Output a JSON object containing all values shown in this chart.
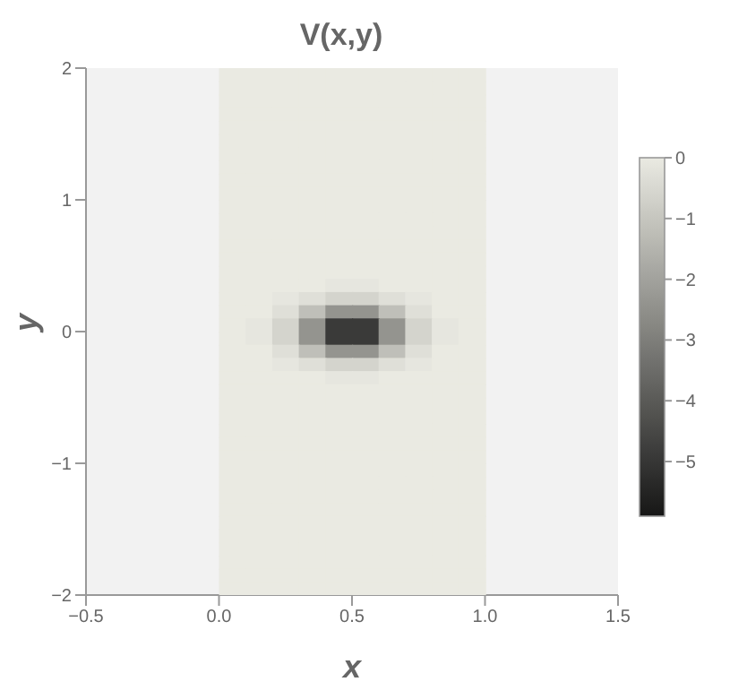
{
  "chart_data": {
    "type": "heatmap",
    "title": "V(x,y)",
    "xlabel": "x",
    "ylabel": "y",
    "x": [
      0.05,
      0.15,
      0.25,
      0.35,
      0.45,
      0.55,
      0.65,
      0.75,
      0.85,
      0.95
    ],
    "xlim": [
      -0.5,
      1.5
    ],
    "xticks": [
      {
        "value": -0.5,
        "label": "−0.5"
      },
      {
        "value": 0,
        "label": "0.0"
      },
      0.5,
      {
        "value": 1,
        "label": "1.0"
      },
      1.5
    ],
    "ylim": [
      -2,
      2
    ],
    "yticks": [
      {
        "value": -2,
        "label": "−2"
      },
      {
        "value": -1,
        "label": "−1"
      },
      0,
      1,
      2
    ],
    "clim": [
      -5.9,
      0
    ],
    "cticks": [
      0,
      {
        "value": -1,
        "label": "−1"
      },
      {
        "value": -2,
        "label": "−2"
      },
      {
        "value": -3,
        "label": "−3"
      },
      {
        "value": -4,
        "label": "−4"
      },
      {
        "value": -5,
        "label": "−5"
      }
    ],
    "cells": [
      [
        0,
        0,
        0,
        0,
        0,
        0,
        0,
        0,
        0,
        0
      ],
      [
        0,
        0,
        0,
        0,
        0,
        0,
        0,
        0,
        0,
        0
      ],
      [
        0,
        0,
        0,
        0,
        0,
        0,
        0,
        0,
        0,
        0
      ],
      [
        0,
        0,
        0,
        0,
        0,
        0,
        0,
        0,
        0,
        0
      ],
      [
        0,
        0,
        0,
        0,
        0,
        0,
        0,
        0,
        0,
        0
      ],
      [
        0,
        0,
        0,
        0,
        0,
        0,
        0,
        0,
        0,
        0
      ],
      [
        0,
        0,
        0,
        0,
        0,
        0,
        0,
        0,
        0,
        0
      ],
      [
        0,
        0,
        0,
        0,
        0,
        0,
        0,
        0,
        0,
        0
      ],
      [
        0,
        0,
        0,
        0,
        0,
        0,
        0,
        0,
        0,
        0
      ],
      [
        0,
        0,
        0,
        0,
        0,
        0,
        0,
        0,
        0,
        0
      ],
      [
        0,
        0,
        0,
        0,
        0,
        0,
        0,
        0,
        0,
        0
      ],
      [
        0,
        0,
        0,
        0,
        0,
        0,
        0,
        0,
        0,
        0
      ],
      [
        0,
        0,
        0,
        0,
        0,
        0,
        0,
        0,
        0,
        0
      ],
      [
        0,
        0,
        0,
        0,
        0,
        0,
        0,
        0,
        0,
        0
      ],
      [
        0,
        0,
        0,
        0,
        0,
        0,
        0,
        0,
        0,
        0
      ],
      [
        0,
        0,
        0,
        0,
        0,
        0,
        0,
        0,
        0,
        0
      ],
      [
        0,
        0,
        0,
        0,
        -0.1,
        -0.1,
        0,
        0,
        0,
        0
      ],
      [
        0,
        0,
        -0.1,
        -0.3,
        -0.6,
        -0.6,
        -0.3,
        -0.1,
        0,
        0
      ],
      [
        0,
        0,
        -0.3,
        -1.2,
        -2.4,
        -2.4,
        -1.2,
        -0.3,
        0,
        0
      ],
      [
        0,
        -0.1,
        -0.6,
        -2.4,
        -4.9,
        -4.9,
        -2.4,
        -0.6,
        -0.1,
        0
      ],
      [
        0,
        -0.1,
        -0.6,
        -2.4,
        -4.9,
        -4.9,
        -2.4,
        -0.6,
        -0.1,
        0
      ],
      [
        0,
        0,
        -0.3,
        -1.2,
        -2.4,
        -2.4,
        -1.2,
        -0.3,
        0,
        0
      ],
      [
        0,
        0,
        -0.1,
        -0.3,
        -0.6,
        -0.6,
        -0.3,
        -0.1,
        0,
        0
      ],
      [
        0,
        0,
        0,
        0,
        -0.1,
        -0.1,
        0,
        0,
        0,
        0
      ],
      [
        0,
        0,
        0,
        0,
        0,
        0,
        0,
        0,
        0,
        0
      ],
      [
        0,
        0,
        0,
        0,
        0,
        0,
        0,
        0,
        0,
        0
      ],
      [
        0,
        0,
        0,
        0,
        0,
        0,
        0,
        0,
        0,
        0
      ],
      [
        0,
        0,
        0,
        0,
        0,
        0,
        0,
        0,
        0,
        0
      ],
      [
        0,
        0,
        0,
        0,
        0,
        0,
        0,
        0,
        0,
        0
      ],
      [
        0,
        0,
        0,
        0,
        0,
        0,
        0,
        0,
        0,
        0
      ],
      [
        0,
        0,
        0,
        0,
        0,
        0,
        0,
        0,
        0,
        0
      ],
      [
        0,
        0,
        0,
        0,
        0,
        0,
        0,
        0,
        0,
        0
      ],
      [
        0,
        0,
        0,
        0,
        0,
        0,
        0,
        0,
        0,
        0
      ],
      [
        0,
        0,
        0,
        0,
        0,
        0,
        0,
        0,
        0,
        0
      ],
      [
        0,
        0,
        0,
        0,
        0,
        0,
        0,
        0,
        0,
        0
      ],
      [
        0,
        0,
        0,
        0,
        0,
        0,
        0,
        0,
        0,
        0
      ],
      [
        0,
        0,
        0,
        0,
        0,
        0,
        0,
        0,
        0,
        0
      ],
      [
        0,
        0,
        0,
        0,
        0,
        0,
        0,
        0,
        0,
        0
      ],
      [
        0,
        0,
        0,
        0,
        0,
        0,
        0,
        0,
        0,
        0
      ],
      [
        0,
        0,
        0,
        0,
        0,
        0,
        0,
        0,
        0,
        0
      ]
    ]
  }
}
